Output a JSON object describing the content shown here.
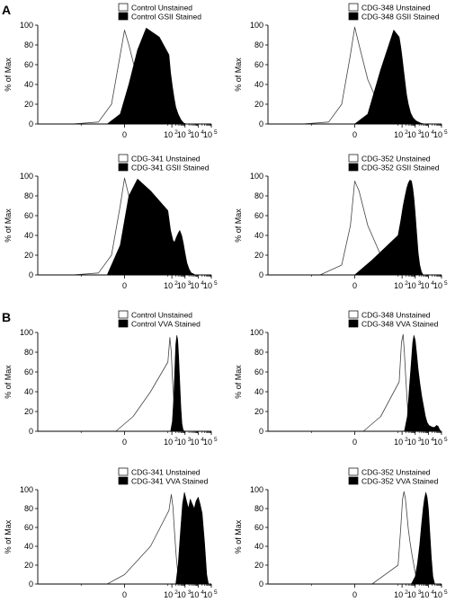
{
  "panel_labels": [
    "A",
    "B"
  ],
  "chart_data": [
    {
      "type": "area",
      "panel": "A",
      "ylabel": "% of Max",
      "ylim": [
        0,
        100
      ],
      "yticks": [
        0,
        20,
        40,
        60,
        80,
        100
      ],
      "xscale": "biexponential",
      "xticks": [
        "0",
        "10^2",
        "10^3",
        "10^4",
        "10^5"
      ],
      "series": [
        {
          "name": "Control Unstained",
          "fill": "#ffffff",
          "x": [
            -60,
            -30,
            -15,
            -5,
            0,
            5,
            15,
            30,
            50,
            80,
            120
          ],
          "y": [
            0,
            2,
            20,
            70,
            95,
            80,
            45,
            15,
            4,
            1,
            0
          ]
        },
        {
          "name": "Control GSII Stained",
          "fill": "#000000",
          "x": [
            -20,
            -5,
            5,
            15,
            25,
            40,
            60,
            80,
            110,
            150,
            200,
            300,
            500,
            800,
            1200
          ],
          "y": [
            0,
            10,
            40,
            75,
            97,
            88,
            70,
            52,
            38,
            26,
            17,
            10,
            4,
            1,
            0
          ]
        }
      ]
    },
    {
      "type": "area",
      "panel": "A",
      "ylabel": "% of Max",
      "ylim": [
        0,
        100
      ],
      "yticks": [
        0,
        20,
        40,
        60,
        80,
        100
      ],
      "xscale": "biexponential",
      "xticks": [
        "0",
        "10^2",
        "10^3",
        "10^4",
        "10^5"
      ],
      "series": [
        {
          "name": "CDG-348 Unstained",
          "fill": "#ffffff",
          "x": [
            -60,
            -30,
            -15,
            -5,
            0,
            5,
            15,
            30,
            50,
            80,
            120
          ],
          "y": [
            0,
            2,
            20,
            70,
            98,
            80,
            45,
            15,
            4,
            1,
            0
          ]
        },
        {
          "name": "CDG-348 GSII Stained",
          "fill": "#000000",
          "x": [
            0,
            15,
            30,
            45,
            60,
            80,
            100,
            130,
            170,
            220,
            300,
            450,
            700,
            1200,
            2500,
            5000
          ],
          "y": [
            0,
            10,
            55,
            95,
            88,
            78,
            68,
            55,
            42,
            30,
            20,
            11,
            6,
            3,
            1,
            0
          ]
        }
      ]
    },
    {
      "type": "area",
      "panel": "A",
      "ylabel": "% of Max",
      "ylim": [
        0,
        100
      ],
      "yticks": [
        0,
        20,
        40,
        60,
        80,
        100
      ],
      "xscale": "biexponential",
      "xticks": [
        "0",
        "10^2",
        "10^3",
        "10^4",
        "10^5"
      ],
      "series": [
        {
          "name": "CDG-341 Unstained",
          "fill": "#ffffff",
          "x": [
            -60,
            -30,
            -15,
            -5,
            0,
            5,
            15,
            30,
            50,
            80,
            120
          ],
          "y": [
            0,
            2,
            20,
            70,
            98,
            80,
            45,
            15,
            4,
            1,
            0
          ]
        },
        {
          "name": "CDG-341 GSII Stained",
          "fill": "#000000",
          "x": [
            -20,
            -5,
            5,
            15,
            30,
            50,
            80,
            120,
            160,
            220,
            300,
            400,
            550,
            750,
            1000,
            1400,
            2000,
            3000,
            4500,
            6000
          ],
          "y": [
            0,
            30,
            80,
            97,
            85,
            65,
            45,
            35,
            33,
            38,
            42,
            45,
            40,
            32,
            22,
            12,
            6,
            2,
            1,
            0
          ]
        }
      ]
    },
    {
      "type": "area",
      "panel": "A",
      "ylabel": "% of Max",
      "ylim": [
        0,
        100
      ],
      "yticks": [
        0,
        20,
        40,
        60,
        80,
        100
      ],
      "xscale": "biexponential",
      "xticks": [
        "0",
        "10^2",
        "10^3",
        "10^4",
        "10^5"
      ],
      "series": [
        {
          "name": "CDG-352 Unstained",
          "fill": "#ffffff",
          "x": [
            -40,
            -15,
            -5,
            0,
            5,
            15,
            30,
            50,
            80,
            120
          ],
          "y": [
            0,
            10,
            50,
            95,
            85,
            50,
            20,
            6,
            1,
            0
          ]
        },
        {
          "name": "CDG-352 GSII Stained",
          "fill": "#000000",
          "x": [
            0,
            20,
            50,
            80,
            120,
            170,
            230,
            300,
            400,
            520,
            650,
            800,
            1000,
            1300,
            1700,
            2200,
            3000,
            4000
          ],
          "y": [
            0,
            15,
            40,
            55,
            70,
            80,
            88,
            93,
            96,
            95,
            88,
            78,
            62,
            42,
            22,
            10,
            3,
            0
          ]
        }
      ]
    },
    {
      "type": "area",
      "panel": "B",
      "ylabel": "% of Max",
      "ylim": [
        0,
        100
      ],
      "yticks": [
        0,
        20,
        40,
        60,
        80,
        100
      ],
      "xscale": "biexponential",
      "xticks": [
        "0",
        "10^2",
        "10^3",
        "10^4",
        "10^5"
      ],
      "series": [
        {
          "name": "Control Unstained",
          "fill": "#ffffff",
          "x": [
            -10,
            10,
            30,
            50,
            70,
            90,
            110,
            140,
            180,
            230,
            300
          ],
          "y": [
            0,
            15,
            40,
            70,
            95,
            80,
            55,
            30,
            12,
            3,
            0
          ]
        },
        {
          "name": "Control VVA Stained",
          "fill": "#000000",
          "x": [
            80,
            110,
            140,
            170,
            200,
            240,
            280,
            330,
            400,
            480,
            580,
            700,
            850
          ],
          "y": [
            0,
            10,
            35,
            65,
            88,
            97,
            92,
            75,
            50,
            25,
            8,
            2,
            0
          ]
        }
      ]
    },
    {
      "type": "area",
      "panel": "B",
      "ylabel": "% of Max",
      "ylim": [
        0,
        100
      ],
      "yticks": [
        0,
        20,
        40,
        60,
        80,
        100
      ],
      "xscale": "biexponential",
      "xticks": [
        "0",
        "10^2",
        "10^3",
        "10^4",
        "10^5"
      ],
      "series": [
        {
          "name": "CDG-348 Unstained",
          "fill": "#ffffff",
          "x": [
            10,
            30,
            60,
            90,
            120,
            150,
            190,
            240,
            300,
            400,
            550
          ],
          "y": [
            0,
            15,
            50,
            90,
            98,
            80,
            55,
            32,
            15,
            5,
            0
          ]
        },
        {
          "name": "CDG-348 VVA Stained",
          "fill": "#000000",
          "x": [
            150,
            250,
            350,
            500,
            650,
            800,
            1000,
            1300,
            1700,
            2300,
            3200,
            4500,
            6000,
            8000,
            11000,
            15000,
            22000,
            30000,
            42000,
            55000,
            70000,
            90000
          ],
          "y": [
            0,
            15,
            42,
            70,
            90,
            97,
            92,
            78,
            62,
            48,
            35,
            24,
            15,
            9,
            6,
            5,
            4,
            4,
            6,
            5,
            2,
            0
          ]
        }
      ]
    },
    {
      "type": "area",
      "panel": "B",
      "ylabel": "% of Max",
      "ylim": [
        0,
        100
      ],
      "yticks": [
        0,
        20,
        40,
        60,
        80,
        100
      ],
      "xscale": "biexponential",
      "xticks": [
        "0",
        "10^2",
        "10^3",
        "10^4",
        "10^5"
      ],
      "series": [
        {
          "name": "CDG-341 Unstained",
          "fill": "#ffffff",
          "x": [
            -20,
            0,
            30,
            60,
            90,
            120,
            160,
            210,
            280,
            380,
            500
          ],
          "y": [
            0,
            10,
            40,
            78,
            95,
            82,
            55,
            30,
            12,
            3,
            0
          ]
        },
        {
          "name": "CDG-341 VVA Stained",
          "fill": "#000000",
          "x": [
            200,
            300,
            450,
            650,
            900,
            1300,
            1800,
            2500,
            3500,
            5000,
            7000,
            10000,
            14000,
            20000,
            30000,
            45000,
            60000
          ],
          "y": [
            0,
            20,
            55,
            85,
            97,
            88,
            80,
            90,
            85,
            80,
            88,
            92,
            85,
            75,
            45,
            10,
            0
          ]
        }
      ]
    },
    {
      "type": "area",
      "panel": "B",
      "ylabel": "% of Max",
      "ylim": [
        0,
        100
      ],
      "yticks": [
        0,
        20,
        40,
        60,
        80,
        100
      ],
      "xscale": "biexponential",
      "xticks": [
        "0",
        "10^2",
        "10^3",
        "10^4",
        "10^5"
      ],
      "series": [
        {
          "name": "CDG-352 Unstained",
          "fill": "#ffffff",
          "x": [
            20,
            50,
            80,
            110,
            140,
            180,
            230,
            300,
            400,
            550,
            750,
            1000,
            1400,
            2000
          ],
          "y": [
            0,
            20,
            60,
            90,
            98,
            90,
            75,
            58,
            45,
            32,
            22,
            12,
            4,
            0
          ]
        },
        {
          "name": "CDG-352 VVA Stained",
          "fill": "#000000",
          "x": [
            500,
            1000,
            1500,
            2200,
            3000,
            4000,
            5000,
            6500,
            8000,
            10000,
            13000,
            17000,
            22000,
            30000
          ],
          "y": [
            0,
            8,
            22,
            42,
            62,
            80,
            90,
            97,
            92,
            80,
            55,
            28,
            8,
            0
          ]
        }
      ]
    }
  ]
}
